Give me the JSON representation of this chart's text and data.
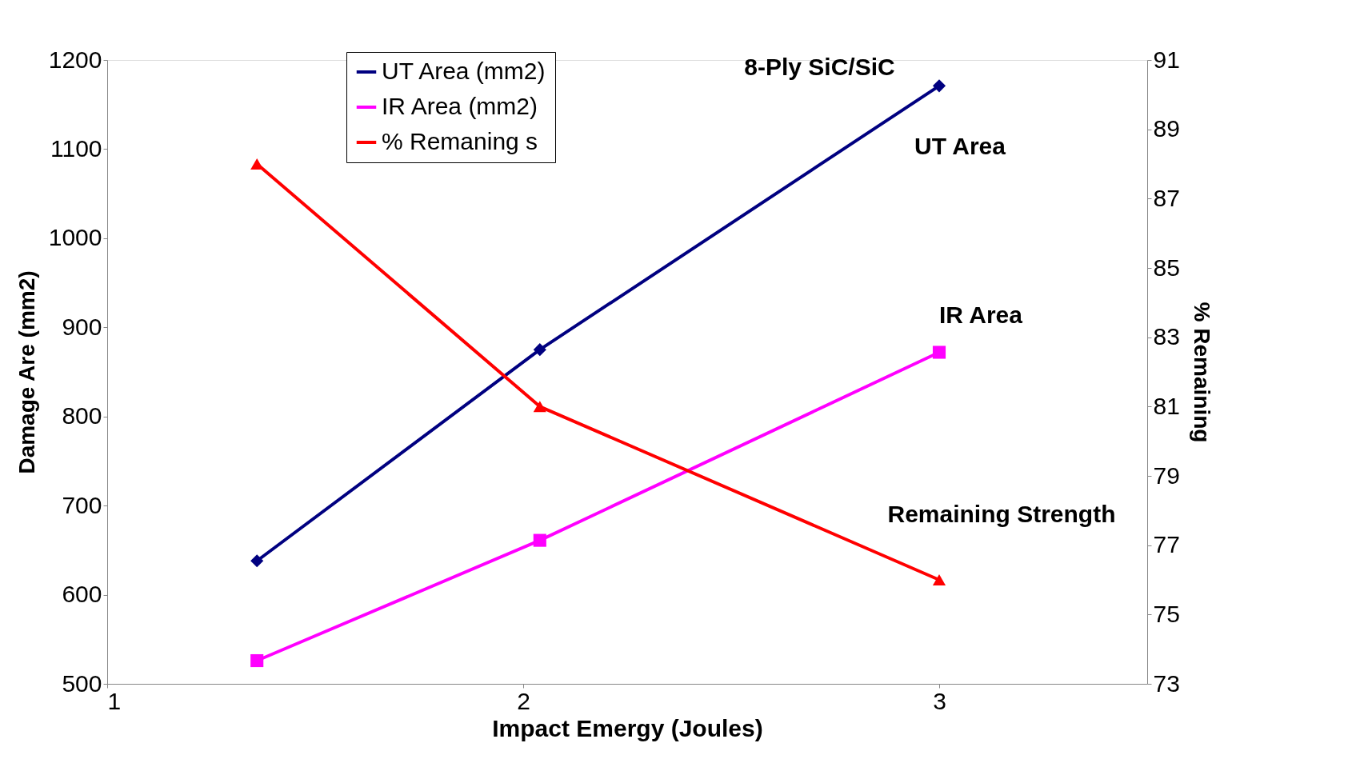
{
  "chart_data": {
    "type": "line",
    "title": "8-Ply SiC/SiC",
    "xlabel": "Impact Emergy (Joules)",
    "ylabel": "Damage Are (mm2)",
    "y2label": "% Remaining",
    "x": [
      1.36,
      2.04,
      3
    ],
    "xlim": [
      1,
      3.5
    ],
    "xticks": [
      1,
      2,
      3
    ],
    "ylim": [
      500,
      1200
    ],
    "yticks": [
      500,
      600,
      700,
      800,
      900,
      1000,
      1100,
      1200
    ],
    "y2lim": [
      73,
      91
    ],
    "y2ticks": [
      73,
      75,
      77,
      79,
      81,
      83,
      85,
      87,
      89,
      91
    ],
    "series": [
      {
        "name": "UT Area (mm2)",
        "color": "#000080",
        "marker": "diamond",
        "values": [
          638,
          875,
          1171
        ]
      },
      {
        "name": "IR Area (mm2)",
        "color": "#ff00ff",
        "marker": "square",
        "values": [
          526,
          661,
          872
        ]
      },
      {
        "name": "% Remaning s",
        "color": "#ff0000",
        "marker": "triangle",
        "axis": "y2",
        "values": [
          88,
          81,
          76
        ]
      }
    ],
    "annotations": [
      "UT Area",
      "IR Area",
      "Remaining Strength"
    ],
    "grid": false,
    "legend": "top left",
    "line_style": "solid"
  }
}
